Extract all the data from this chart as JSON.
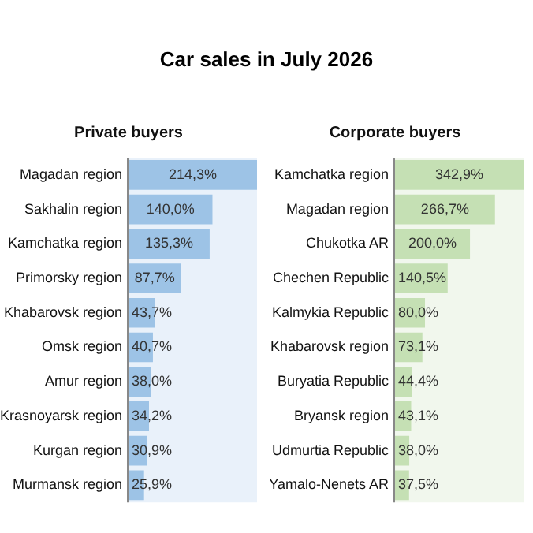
{
  "chart_data": [
    {
      "type": "bar",
      "orientation": "horizontal",
      "title": "Car sales in July 2026",
      "subtitle": "Private buyers",
      "categories": [
        "Magadan region",
        "Sakhalin region",
        "Kamchatka region",
        "Primorsky region",
        "Khabarovsk region",
        "Omsk region",
        "Amur region",
        "Krasnoyarsk region",
        "Kurgan region",
        "Murmansk region"
      ],
      "values": [
        214.3,
        140.0,
        135.3,
        87.7,
        43.7,
        40.7,
        38.0,
        34.2,
        30.9,
        25.9
      ],
      "value_labels": [
        "214,3%",
        "140,0%",
        "135,3%",
        "87,7%",
        "43,7%",
        "40,7%",
        "38,0%",
        "34,2%",
        "30,9%",
        "25,9%"
      ],
      "color": "#9dc3e6",
      "xlim": [
        0,
        214.3
      ],
      "bands": [
        {
          "axis": "x",
          "from": 0,
          "to": 214.3,
          "color": "#e9f1fa"
        }
      ],
      "legend": false,
      "grid": false
    },
    {
      "type": "bar",
      "orientation": "horizontal",
      "subtitle": "Corporate buyers",
      "categories": [
        "Kamchatka region",
        "Magadan region",
        "Chukotka AR",
        "Chechen Republic",
        "Kalmykia Republic",
        "Khabarovsk region",
        "Buryatia Republic",
        "Bryansk region",
        "Udmurtia Republic",
        "Yamalo-Nenets AR"
      ],
      "values": [
        342.9,
        266.7,
        200.0,
        140.5,
        80.0,
        73.1,
        44.4,
        43.1,
        38.0,
        37.5
      ],
      "value_labels": [
        "342,9%",
        "266,7%",
        "200,0%",
        "140,5%",
        "80,0%",
        "73,1%",
        "44,4%",
        "43,1%",
        "38,0%",
        "37,5%"
      ],
      "color": "#c5e0b4",
      "xlim": [
        0,
        342.9
      ],
      "bands": [
        {
          "axis": "x",
          "from": 0,
          "to": 342.9,
          "color": "#f1f7ed"
        }
      ],
      "legend": false,
      "grid": false
    }
  ]
}
